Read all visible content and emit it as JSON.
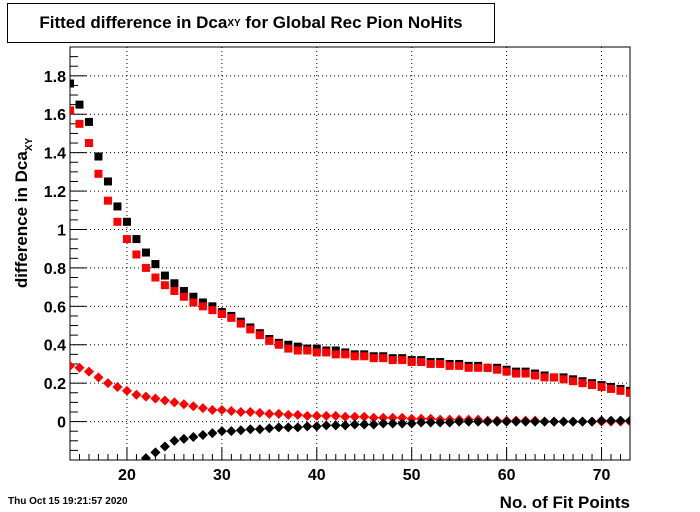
{
  "title": {
    "main": "Fitted difference in Dca",
    "sub": "XY",
    "rest": " for Global Rec Pion NoHits"
  },
  "timestamp": "Thu Oct 15 19:21:57 2020",
  "chart_data": {
    "type": "scatter",
    "title": "Fitted difference in DcaXY for Global Rec Pion NoHits",
    "xlabel": "No. of Fit Points",
    "ylabel": {
      "main": "difference in Dca",
      "sub": "XY"
    },
    "xlim": [
      14,
      73
    ],
    "ylim": [
      -0.2,
      1.95
    ],
    "x_ticks": [
      20,
      30,
      40,
      50,
      60,
      70
    ],
    "y_ticks": [
      0,
      0.2,
      0.4,
      0.6,
      0.8,
      1,
      1.2,
      1.4,
      1.6,
      1.8
    ],
    "y_tick_labels": [
      "0",
      "0.2",
      "0.4",
      "0.6",
      "0.8",
      "1",
      "1.2",
      "1.4",
      "1.6",
      "1.8"
    ],
    "grid": true,
    "legend": "none",
    "x": [
      14,
      15,
      16,
      17,
      18,
      19,
      20,
      21,
      22,
      23,
      24,
      25,
      26,
      27,
      28,
      29,
      30,
      31,
      32,
      33,
      34,
      35,
      36,
      37,
      38,
      39,
      40,
      41,
      42,
      43,
      44,
      45,
      46,
      47,
      48,
      49,
      50,
      51,
      52,
      53,
      54,
      55,
      56,
      57,
      58,
      59,
      60,
      61,
      62,
      63,
      64,
      65,
      66,
      67,
      68,
      69,
      70,
      71,
      72,
      73
    ],
    "series": [
      {
        "marker": "square",
        "color": "#000000",
        "values": [
          1.76,
          1.65,
          1.56,
          1.38,
          1.25,
          1.12,
          1.04,
          0.95,
          0.88,
          0.82,
          0.76,
          0.72,
          0.68,
          0.65,
          0.62,
          0.6,
          0.57,
          0.55,
          0.52,
          0.49,
          0.46,
          0.43,
          0.41,
          0.4,
          0.39,
          0.38,
          0.38,
          0.37,
          0.37,
          0.36,
          0.35,
          0.35,
          0.34,
          0.34,
          0.33,
          0.33,
          0.32,
          0.32,
          0.31,
          0.31,
          0.3,
          0.3,
          0.29,
          0.29,
          0.28,
          0.28,
          0.27,
          0.26,
          0.26,
          0.25,
          0.24,
          0.23,
          0.23,
          0.22,
          0.21,
          0.2,
          0.19,
          0.18,
          0.17,
          0.16
        ]
      },
      {
        "marker": "square",
        "color": "#ff0000",
        "values": [
          1.62,
          1.55,
          1.45,
          1.29,
          1.15,
          1.04,
          0.95,
          0.87,
          0.8,
          0.75,
          0.71,
          0.68,
          0.65,
          0.62,
          0.6,
          0.58,
          0.56,
          0.54,
          0.51,
          0.48,
          0.45,
          0.42,
          0.4,
          0.38,
          0.37,
          0.37,
          0.36,
          0.36,
          0.35,
          0.35,
          0.34,
          0.34,
          0.33,
          0.33,
          0.32,
          0.32,
          0.31,
          0.31,
          0.3,
          0.3,
          0.29,
          0.29,
          0.28,
          0.28,
          0.28,
          0.27,
          0.26,
          0.25,
          0.25,
          0.24,
          0.23,
          0.23,
          0.22,
          0.21,
          0.2,
          0.19,
          0.18,
          0.17,
          0.16,
          0.15
        ]
      },
      {
        "marker": "diamond",
        "color": "#ff0000",
        "values": [
          0.29,
          0.28,
          0.26,
          0.23,
          0.2,
          0.18,
          0.16,
          0.14,
          0.13,
          0.12,
          0.11,
          0.1,
          0.09,
          0.08,
          0.07,
          0.06,
          0.06,
          0.055,
          0.05,
          0.05,
          0.045,
          0.04,
          0.04,
          0.035,
          0.035,
          0.03,
          0.03,
          0.03,
          0.03,
          0.025,
          0.025,
          0.025,
          0.02,
          0.02,
          0.02,
          0.02,
          0.015,
          0.015,
          0.015,
          0.01,
          0.01,
          0.01,
          0.01,
          0.01,
          0.005,
          0.005,
          0.005,
          0.005,
          0.005,
          0.005,
          0.0,
          0.0,
          0.0,
          0.0,
          0.0,
          0.0,
          0.0,
          0.0,
          0.0,
          0.0
        ]
      },
      {
        "marker": "diamond",
        "color": "#000000",
        "values": [
          null,
          null,
          null,
          null,
          null,
          null,
          null,
          null,
          -0.19,
          -0.16,
          -0.13,
          -0.1,
          -0.09,
          -0.08,
          -0.07,
          -0.06,
          -0.05,
          -0.05,
          -0.045,
          -0.04,
          -0.04,
          -0.035,
          -0.03,
          -0.03,
          -0.03,
          -0.025,
          -0.025,
          -0.02,
          -0.02,
          -0.02,
          -0.015,
          -0.015,
          -0.015,
          -0.01,
          -0.01,
          -0.01,
          -0.01,
          -0.005,
          -0.005,
          -0.005,
          -0.005,
          0.0,
          0.0,
          0.0,
          0.0,
          0.0,
          0.0,
          0.0,
          0.0,
          0.0,
          0.0,
          0.0,
          0.0,
          0.0,
          0.0,
          0.0,
          0.005,
          0.005,
          0.005,
          0.005
        ]
      }
    ]
  }
}
